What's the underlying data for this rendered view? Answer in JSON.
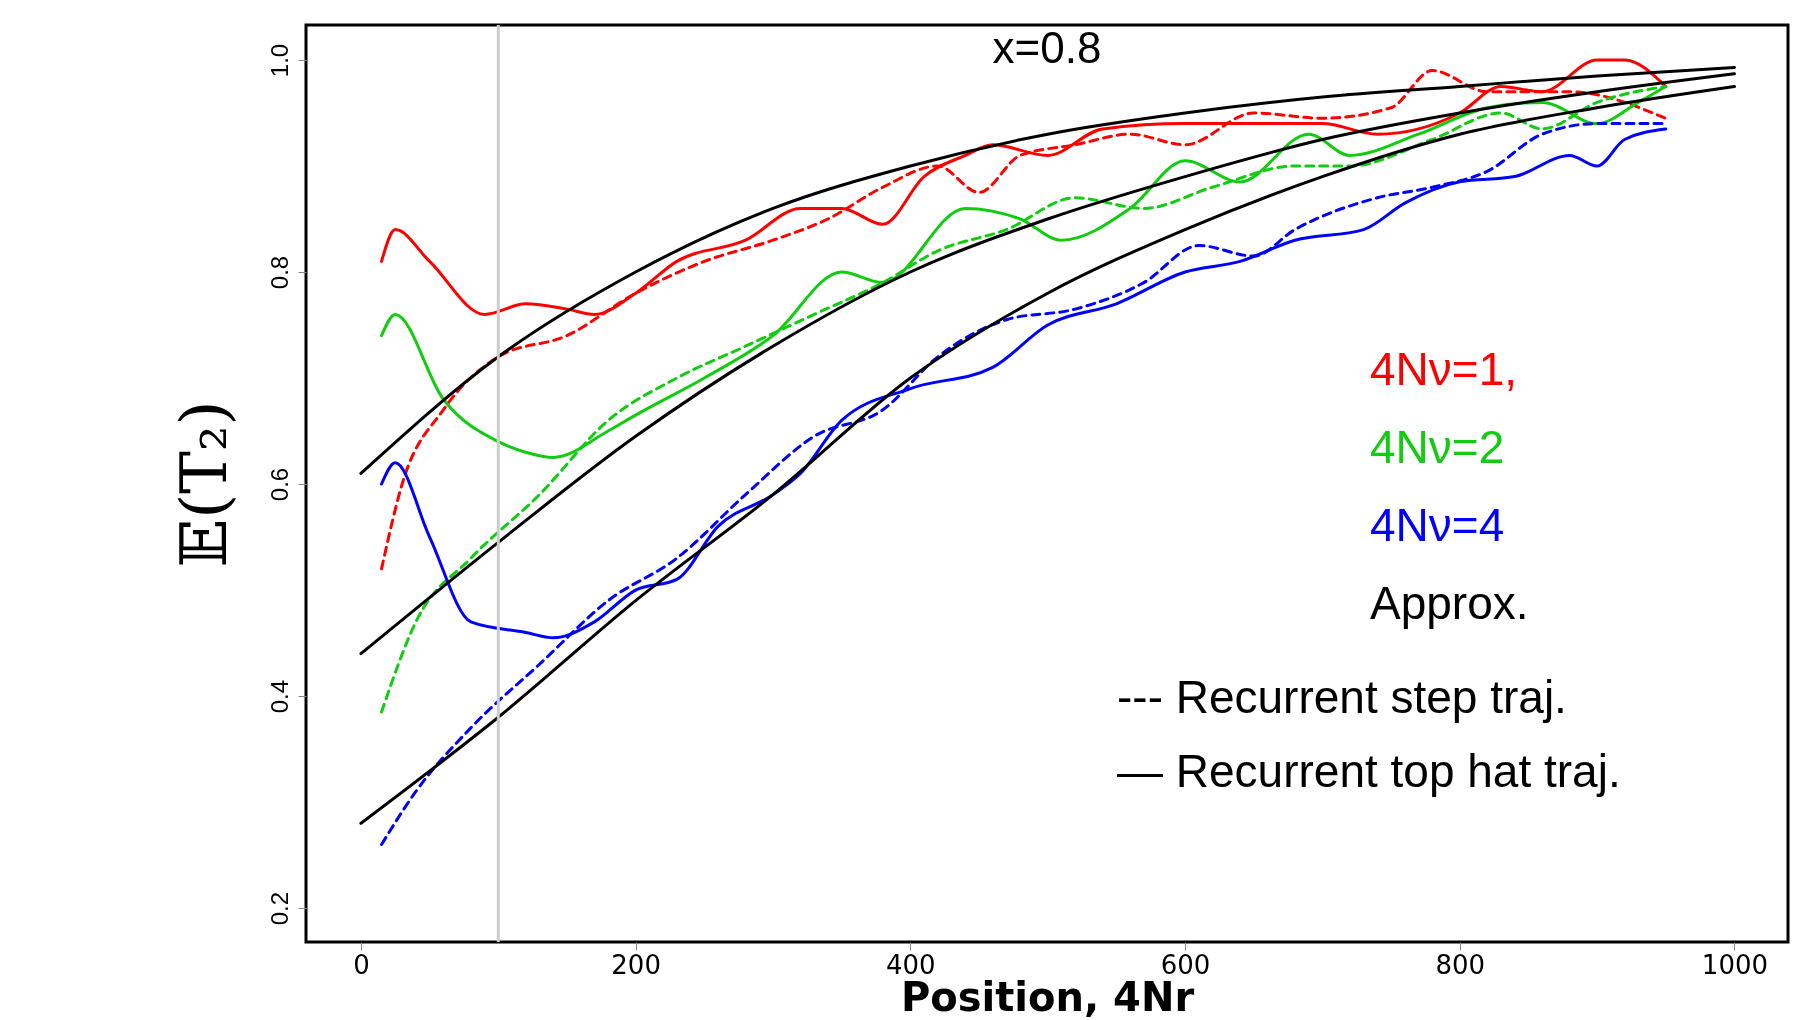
{
  "chart_data": {
    "type": "line",
    "title": "x=0.8",
    "xlabel": "Position, 4Nr",
    "ylabel": "𝔼(T₂)",
    "xlim": [
      -40,
      1039
    ],
    "ylim": [
      0.168,
      1.033
    ],
    "xticks": [
      0,
      200,
      400,
      600,
      800,
      1000
    ],
    "yticks": [
      0.2,
      0.4,
      0.6,
      0.8,
      {
        "value": 1,
        "label": "1.0"
      }
    ],
    "grid": false,
    "ref_lines": [
      {
        "axis": "x",
        "value": 100,
        "color": "#cccccc"
      }
    ],
    "annotations": [
      "4Nν=1,",
      "4Nν=2",
      "4Nν=4",
      "Approx.",
      "--- Recurrent step traj.",
      "— Recurrent top hat traj."
    ],
    "series": [
      {
        "color": "#ff0000",
        "line_style": "solid",
        "x": [
          15,
          25,
          50,
          90,
          120,
          150,
          170,
          200,
          230,
          280,
          320,
          350,
          380,
          410,
          440,
          460,
          500,
          540,
          600,
          700,
          740,
          800,
          830,
          860,
          900,
          920,
          950
        ],
        "values": [
          0.81,
          0.84,
          0.81,
          0.76,
          0.77,
          0.765,
          0.76,
          0.78,
          0.81,
          0.83,
          0.86,
          0.86,
          0.845,
          0.89,
          0.91,
          0.92,
          0.91,
          0.935,
          0.94,
          0.94,
          0.93,
          0.95,
          0.975,
          0.97,
          1.0,
          1.0,
          0.975
        ]
      },
      {
        "color": "#ff0000",
        "line_style": "dashed",
        "x": [
          15,
          30,
          60,
          100,
          150,
          200,
          250,
          300,
          340,
          380,
          420,
          450,
          480,
          520,
          560,
          600,
          650,
          700,
          750,
          780,
          820,
          880,
          950
        ],
        "values": [
          0.52,
          0.6,
          0.67,
          0.72,
          0.74,
          0.78,
          0.81,
          0.83,
          0.85,
          0.88,
          0.9,
          0.875,
          0.91,
          0.92,
          0.93,
          0.92,
          0.95,
          0.945,
          0.955,
          0.99,
          0.97,
          0.97,
          0.945
        ]
      },
      {
        "color": "#11cc11",
        "line_style": "solid",
        "x": [
          15,
          25,
          60,
          100,
          120,
          140,
          180,
          200,
          250,
          300,
          350,
          380,
          440,
          480,
          510,
          560,
          600,
          640,
          690,
          720,
          770,
          820,
          860,
          900,
          930,
          950
        ],
        "values": [
          0.74,
          0.76,
          0.68,
          0.64,
          0.63,
          0.625,
          0.65,
          0.665,
          0.7,
          0.74,
          0.8,
          0.79,
          0.86,
          0.85,
          0.83,
          0.86,
          0.905,
          0.885,
          0.93,
          0.91,
          0.93,
          0.955,
          0.96,
          0.94,
          0.96,
          0.975
        ]
      },
      {
        "color": "#11cc11",
        "line_style": "dashed",
        "x": [
          15,
          40,
          80,
          130,
          180,
          230,
          280,
          330,
          380,
          420,
          470,
          520,
          570,
          620,
          680,
          720,
          780,
          830,
          860,
          900,
          950
        ],
        "values": [
          0.385,
          0.47,
          0.53,
          0.59,
          0.66,
          0.7,
          0.73,
          0.76,
          0.79,
          0.82,
          0.84,
          0.87,
          0.86,
          0.88,
          0.9,
          0.9,
          0.925,
          0.95,
          0.935,
          0.96,
          0.975
        ]
      },
      {
        "color": "#0000ff",
        "line_style": "solid",
        "x": [
          15,
          25,
          50,
          80,
          120,
          140,
          170,
          200,
          230,
          260,
          300,
          320,
          350,
          400,
          460,
          500,
          550,
          600,
          640,
          680,
          730,
          760,
          800,
          840,
          880,
          900,
          920,
          950
        ],
        "values": [
          0.6,
          0.62,
          0.55,
          0.47,
          0.46,
          0.455,
          0.47,
          0.5,
          0.51,
          0.56,
          0.59,
          0.61,
          0.66,
          0.69,
          0.71,
          0.75,
          0.77,
          0.8,
          0.81,
          0.83,
          0.84,
          0.865,
          0.885,
          0.89,
          0.91,
          0.9,
          0.925,
          0.935
        ]
      },
      {
        "color": "#0000ff",
        "line_style": "dashed",
        "x": [
          15,
          40,
          80,
          130,
          180,
          230,
          280,
          330,
          380,
          420,
          470,
          520,
          570,
          610,
          650,
          680,
          740,
          780,
          820,
          860,
          900,
          950
        ],
        "values": [
          0.26,
          0.31,
          0.37,
          0.43,
          0.49,
          0.53,
          0.59,
          0.645,
          0.67,
          0.72,
          0.755,
          0.765,
          0.79,
          0.825,
          0.815,
          0.84,
          0.87,
          0.88,
          0.895,
          0.93,
          0.94,
          0.94
        ]
      },
      {
        "color": "#000000",
        "line_style": "solid",
        "x": [
          0,
          100,
          200,
          300,
          400,
          500,
          600,
          700,
          800,
          900,
          1000
        ],
        "values": [
          0.61,
          0.72,
          0.8,
          0.86,
          0.9,
          0.93,
          0.95,
          0.965,
          0.975,
          0.985,
          0.993
        ]
      },
      {
        "color": "#000000",
        "line_style": "solid",
        "x": [
          0,
          100,
          200,
          300,
          400,
          500,
          600,
          700,
          800,
          900,
          1000
        ],
        "values": [
          0.44,
          0.545,
          0.645,
          0.73,
          0.8,
          0.85,
          0.89,
          0.925,
          0.95,
          0.97,
          0.987
        ]
      },
      {
        "color": "#000000",
        "line_style": "solid",
        "x": [
          0,
          100,
          200,
          300,
          400,
          500,
          600,
          700,
          800,
          900,
          1000
        ],
        "values": [
          0.28,
          0.38,
          0.49,
          0.59,
          0.7,
          0.78,
          0.84,
          0.89,
          0.93,
          0.955,
          0.975
        ]
      }
    ]
  }
}
